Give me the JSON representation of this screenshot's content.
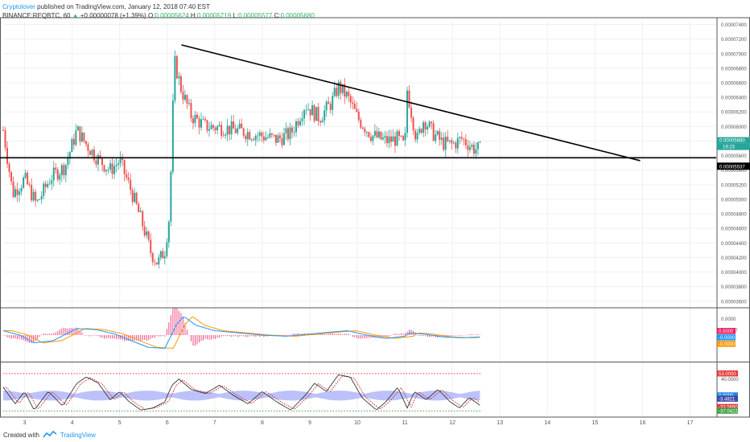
{
  "header": {
    "author": "Cryptolover",
    "published": "published on TradingView.com, January 12, 2018 07:40 EST",
    "symbol": "BINANCE:REQBTC, 60",
    "change_arrow": "▲",
    "change": "+0.00000078 (+1.39%)",
    "o_label": "O:",
    "o_value": "0.00005624",
    "h_label": "H:",
    "h_value": "0.00005719",
    "l_label": "L:",
    "l_value": "0.00005577",
    "c_label": "C:",
    "c_value": "0.00005680"
  },
  "footer": {
    "created_with": "Created with",
    "brand": "TradingView"
  },
  "colors": {
    "up": "#26a69a",
    "down": "#ef5350",
    "trendline": "#000000",
    "macd_line": "#2196f3",
    "signal_line": "#ff9800",
    "hist": "#e91e63",
    "grid": "#eef0f3",
    "stoch_band": "#9fa8f7"
  },
  "chart_data": [
    {
      "type": "candlestick",
      "title": "",
      "x_ticks": [
        "3",
        "4",
        "5",
        "6",
        "7",
        "8",
        "9",
        "10",
        "11",
        "12",
        "13",
        "14",
        "15",
        "16",
        "17"
      ],
      "x_range": [
        2.55,
        17.55
      ],
      "y_ticks": [
        "0.00007400",
        "0.00007200",
        "0.00007000",
        "0.00006800",
        "0.00006600",
        "0.00006400",
        "0.00006200",
        "0.00006000",
        "0.00005800",
        "0.00005600",
        "0.00005400",
        "0.00005200",
        "0.00005000",
        "0.00004800",
        "0.00004600",
        "0.00004400",
        "0.00004200",
        "0.00004000",
        "0.00003800",
        "0.00003600"
      ],
      "ylim": [
        3.52e-05,
        7.45e-05
      ],
      "price_anchors": [
        [
          2.55,
          5.95e-05
        ],
        [
          2.75,
          5.08e-05
        ],
        [
          3.0,
          5.28e-05
        ],
        [
          3.25,
          4.93e-05
        ],
        [
          3.55,
          5.3e-05
        ],
        [
          3.85,
          5.45e-05
        ],
        [
          4.1,
          5.95e-05
        ],
        [
          4.3,
          5.75e-05
        ],
        [
          4.55,
          5.55e-05
        ],
        [
          4.8,
          5.4e-05
        ],
        [
          5.0,
          5.53e-05
        ],
        [
          5.25,
          5.1e-05
        ],
        [
          5.5,
          4.62e-05
        ],
        [
          5.65,
          4.28e-05
        ],
        [
          5.8,
          4.12e-05
        ],
        [
          5.95,
          4.3e-05
        ],
        [
          6.05,
          4.8e-05
        ],
        [
          6.15,
          6.9e-05
        ],
        [
          6.3,
          6.5e-05
        ],
        [
          6.5,
          6.15e-05
        ],
        [
          6.8,
          6e-05
        ],
        [
          7.2,
          5.98e-05
        ],
        [
          7.6,
          5.93e-05
        ],
        [
          8.0,
          5.87e-05
        ],
        [
          8.3,
          5.82e-05
        ],
        [
          8.6,
          5.9e-05
        ],
        [
          8.9,
          6.3e-05
        ],
        [
          9.2,
          6.12e-05
        ],
        [
          9.45,
          6.32e-05
        ],
        [
          9.6,
          6.55e-05
        ],
        [
          9.8,
          6.4e-05
        ],
        [
          10.0,
          6.12e-05
        ],
        [
          10.3,
          5.88e-05
        ],
        [
          10.6,
          5.8e-05
        ],
        [
          10.85,
          5.83e-05
        ],
        [
          11.0,
          5.72e-05
        ],
        [
          11.05,
          6.5e-05
        ],
        [
          11.25,
          5.8e-05
        ],
        [
          11.4,
          6.1e-05
        ],
        [
          11.6,
          5.9e-05
        ],
        [
          11.8,
          5.77e-05
        ],
        [
          12.0,
          5.75e-05
        ],
        [
          12.2,
          5.83e-05
        ],
        [
          12.45,
          5.7e-05
        ],
        [
          12.6,
          5.68e-05
        ]
      ],
      "trendline": {
        "from": [
          6.3,
          7.12e-05
        ],
        "to": [
          15.95,
          5.53e-05
        ]
      },
      "support_line": {
        "y": 5.57e-05
      },
      "last_price_tag": "0.00005680",
      "countdown_tag": "19:23",
      "line_tag": "0.00005537"
    },
    {
      "type": "line",
      "title": "",
      "x_range": [
        2.55,
        17.55
      ],
      "y_ticks": [
        "0.0000",
        "-0.0000"
      ],
      "ylim": [
        -1.2,
        1.2
      ],
      "macd_anchors": [
        [
          2.55,
          0.2
        ],
        [
          2.9,
          0.0
        ],
        [
          3.2,
          -0.35
        ],
        [
          3.6,
          -0.25
        ],
        [
          4.1,
          0.3
        ],
        [
          4.5,
          0.25
        ],
        [
          4.9,
          0.05
        ],
        [
          5.3,
          -0.3
        ],
        [
          5.6,
          -0.55
        ],
        [
          5.95,
          -0.6
        ],
        [
          6.2,
          0.5
        ],
        [
          6.35,
          0.85
        ],
        [
          6.6,
          0.45
        ],
        [
          7.0,
          0.2
        ],
        [
          7.5,
          0.1
        ],
        [
          8.0,
          0.0
        ],
        [
          8.5,
          -0.05
        ],
        [
          9.0,
          0.05
        ],
        [
          9.5,
          0.15
        ],
        [
          9.8,
          0.2
        ],
        [
          10.2,
          0.0
        ],
        [
          10.6,
          -0.15
        ],
        [
          11.0,
          -0.05
        ],
        [
          11.1,
          0.1
        ],
        [
          11.4,
          0.05
        ],
        [
          11.8,
          -0.08
        ],
        [
          12.2,
          -0.12
        ],
        [
          12.6,
          -0.08
        ]
      ],
      "tags": [
        "0.0000",
        "-0.0000",
        "-0.0000"
      ]
    },
    {
      "type": "line",
      "title": "",
      "x_range": [
        2.55,
        17.55
      ],
      "y_ticks": [
        "40.0000"
      ],
      "ylim": [
        -50,
        80
      ],
      "stoch_anchors": [
        [
          2.55,
          20
        ],
        [
          2.8,
          -20
        ],
        [
          3.0,
          10
        ],
        [
          3.2,
          -35
        ],
        [
          3.5,
          10
        ],
        [
          3.8,
          -25
        ],
        [
          4.1,
          30
        ],
        [
          4.3,
          45
        ],
        [
          4.55,
          30
        ],
        [
          4.8,
          -10
        ],
        [
          5.0,
          10
        ],
        [
          5.2,
          -15
        ],
        [
          5.45,
          -35
        ],
        [
          5.7,
          -30
        ],
        [
          5.95,
          -15
        ],
        [
          6.1,
          25
        ],
        [
          6.25,
          40
        ],
        [
          6.5,
          15
        ],
        [
          6.8,
          5
        ],
        [
          7.1,
          25
        ],
        [
          7.4,
          0
        ],
        [
          7.7,
          -20
        ],
        [
          8.0,
          10
        ],
        [
          8.3,
          -15
        ],
        [
          8.6,
          -35
        ],
        [
          8.9,
          0
        ],
        [
          9.1,
          30
        ],
        [
          9.35,
          10
        ],
        [
          9.6,
          50
        ],
        [
          9.85,
          45
        ],
        [
          10.1,
          -5
        ],
        [
          10.4,
          -35
        ],
        [
          10.6,
          -15
        ],
        [
          10.85,
          20
        ],
        [
          11.05,
          -30
        ],
        [
          11.2,
          10
        ],
        [
          11.45,
          -10
        ],
        [
          11.7,
          15
        ],
        [
          11.95,
          -15
        ],
        [
          12.15,
          -30
        ],
        [
          12.35,
          -5
        ],
        [
          12.6,
          -25
        ]
      ],
      "overbought_level": 53,
      "oversold_level": -37.0422,
      "tags": [
        "53.0000",
        "0.0000",
        "-3.4821",
        "-33.5690",
        "-37.0422"
      ]
    }
  ]
}
